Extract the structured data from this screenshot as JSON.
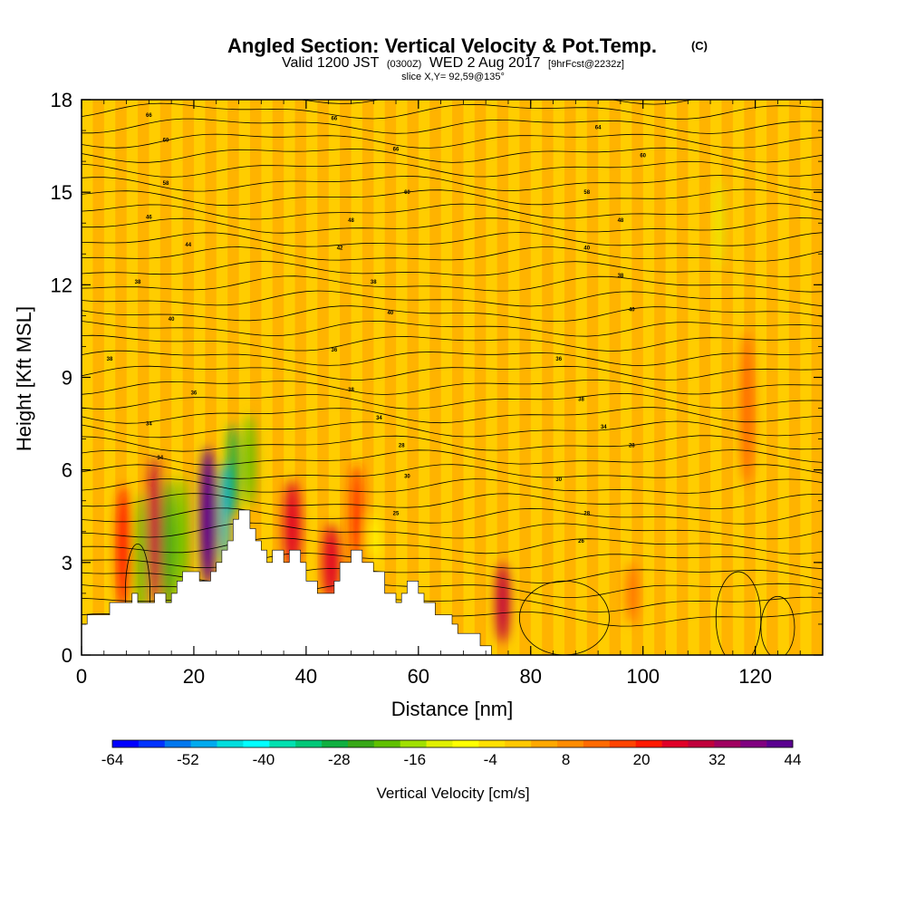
{
  "title": {
    "main": "Angled Section: Vertical Velocity & Pot.Temp.",
    "unit_tag": "(C)",
    "valid_prefix": "Valid 1200 JST",
    "valid_utc": "(0300Z)",
    "valid_date": "WED 2 Aug 2017",
    "forecast": "[9hrFcst@2232z]",
    "slice": "slice X,Y= 92,59@135°"
  },
  "chart_data": {
    "type": "heatmap",
    "xlabel": "Distance [nm]",
    "ylabel": "Height [Kft MSL]",
    "xlim": [
      0,
      132
    ],
    "ylim": [
      0,
      18
    ],
    "x_ticks": [
      "0",
      "20",
      "40",
      "60",
      "80",
      "100",
      "120"
    ],
    "y_ticks": [
      "0",
      "3",
      "6",
      "9",
      "12",
      "15",
      "18"
    ],
    "colorbar": {
      "title": "Vertical Velocity [cm/s]",
      "min": -64,
      "max": 44,
      "tick_labels": [
        "-64",
        "-52",
        "-40",
        "-28",
        "-16",
        "-4",
        "8",
        "20",
        "32",
        "44"
      ],
      "colors": [
        "#0000ff",
        "#0033ff",
        "#0077ee",
        "#00aaee",
        "#00dddd",
        "#00ffff",
        "#00e0b0",
        "#00c878",
        "#10b040",
        "#38a818",
        "#60c000",
        "#a0e000",
        "#e0f000",
        "#ffff00",
        "#ffe000",
        "#ffc800",
        "#ffa800",
        "#ff8c00",
        "#ff6a00",
        "#ff4400",
        "#ff1a00",
        "#e00028",
        "#c0003c",
        "#a00060",
        "#800080",
        "#5a0090"
      ]
    },
    "terrain": [
      [
        0,
        1.0
      ],
      [
        1,
        1.0
      ],
      [
        1,
        1.3
      ],
      [
        5,
        1.3
      ],
      [
        5,
        1.7
      ],
      [
        9,
        1.7
      ],
      [
        9,
        2.0
      ],
      [
        10,
        2.0
      ],
      [
        10,
        1.7
      ],
      [
        13,
        1.7
      ],
      [
        13,
        2.0
      ],
      [
        15,
        2.0
      ],
      [
        15,
        1.7
      ],
      [
        16,
        1.7
      ],
      [
        16,
        2.0
      ],
      [
        17,
        2.0
      ],
      [
        17,
        2.4
      ],
      [
        18,
        2.4
      ],
      [
        18,
        2.7
      ],
      [
        21,
        2.7
      ],
      [
        21,
        2.4
      ],
      [
        23,
        2.4
      ],
      [
        23,
        2.7
      ],
      [
        24,
        2.7
      ],
      [
        24,
        3.0
      ],
      [
        25,
        3.0
      ],
      [
        25,
        3.4
      ],
      [
        26,
        3.4
      ],
      [
        26,
        3.7
      ],
      [
        27,
        3.7
      ],
      [
        27,
        4.4
      ],
      [
        28,
        4.4
      ],
      [
        28,
        4.7
      ],
      [
        30,
        4.7
      ],
      [
        30,
        4.1
      ],
      [
        31,
        4.1
      ],
      [
        31,
        3.7
      ],
      [
        32,
        3.7
      ],
      [
        32,
        3.4
      ],
      [
        33,
        3.4
      ],
      [
        33,
        3.0
      ],
      [
        34,
        3.0
      ],
      [
        34,
        3.4
      ],
      [
        36,
        3.4
      ],
      [
        36,
        3.0
      ],
      [
        37,
        3.0
      ],
      [
        37,
        3.4
      ],
      [
        39,
        3.4
      ],
      [
        39,
        3.0
      ],
      [
        40,
        3.0
      ],
      [
        40,
        2.4
      ],
      [
        42,
        2.4
      ],
      [
        42,
        2.0
      ],
      [
        45,
        2.0
      ],
      [
        45,
        2.4
      ],
      [
        46,
        2.4
      ],
      [
        46,
        3.0
      ],
      [
        48,
        3.0
      ],
      [
        48,
        3.4
      ],
      [
        50,
        3.4
      ],
      [
        50,
        3.0
      ],
      [
        52,
        3.0
      ],
      [
        52,
        2.7
      ],
      [
        54,
        2.7
      ],
      [
        54,
        2.0
      ],
      [
        56,
        2.0
      ],
      [
        56,
        1.7
      ],
      [
        57,
        1.7
      ],
      [
        57,
        2.0
      ],
      [
        58,
        2.0
      ],
      [
        58,
        2.4
      ],
      [
        60,
        2.4
      ],
      [
        60,
        2.0
      ],
      [
        61,
        2.0
      ],
      [
        61,
        1.7
      ],
      [
        63,
        1.7
      ],
      [
        63,
        1.3
      ],
      [
        66,
        1.3
      ],
      [
        66,
        1.0
      ],
      [
        67,
        1.0
      ],
      [
        67,
        0.7
      ],
      [
        71,
        0.7
      ],
      [
        71,
        0.3
      ],
      [
        73,
        0.3
      ],
      [
        73,
        0.0
      ]
    ],
    "velocity_cells": [
      {
        "x": 7.5,
        "y": 3.5,
        "w": 2.5,
        "h": 4.0,
        "v": 22
      },
      {
        "x": 10.5,
        "y": 3.0,
        "w": 1.8,
        "h": 4.5,
        "v": -22
      },
      {
        "x": 13.0,
        "y": 4.0,
        "w": 2.5,
        "h": 5.0,
        "v": 28
      },
      {
        "x": 15.5,
        "y": 3.5,
        "w": 2.2,
        "h": 4.5,
        "v": -26
      },
      {
        "x": 18.0,
        "y": 3.8,
        "w": 2.0,
        "h": 4.0,
        "v": -20
      },
      {
        "x": 22.5,
        "y": 4.5,
        "w": 3.0,
        "h": 4.5,
        "v": 40
      },
      {
        "x": 25.5,
        "y": 4.5,
        "w": 1.5,
        "h": 3.5,
        "v": -50
      },
      {
        "x": 27.0,
        "y": 6.0,
        "w": 2.0,
        "h": 3.0,
        "v": -28
      },
      {
        "x": 30.0,
        "y": 6.3,
        "w": 2.0,
        "h": 3.0,
        "v": -20
      },
      {
        "x": 37.5,
        "y": 4.2,
        "w": 3.0,
        "h": 3.0,
        "v": 24
      },
      {
        "x": 44.5,
        "y": 3.0,
        "w": 3.0,
        "h": 2.5,
        "v": 26
      },
      {
        "x": 49.0,
        "y": 4.5,
        "w": 2.0,
        "h": 3.5,
        "v": 22
      },
      {
        "x": 52.0,
        "y": 3.8,
        "w": 1.5,
        "h": 1.5,
        "v": -10
      },
      {
        "x": 75.0,
        "y": 1.7,
        "w": 2.5,
        "h": 2.6,
        "v": 30
      },
      {
        "x": 98.0,
        "y": 2.0,
        "w": 2.0,
        "h": 2.0,
        "v": 14
      },
      {
        "x": 113.8,
        "y": 14.0,
        "w": 1.2,
        "h": 3.0,
        "v": -12
      },
      {
        "x": 118.5,
        "y": 8.0,
        "w": 2.5,
        "h": 5.0,
        "v": 12
      }
    ],
    "theta_contours": {
      "levels_count": 37,
      "labels": [
        {
          "x": 12,
          "y": 17.5,
          "text": "66"
        },
        {
          "x": 45,
          "y": 17.4,
          "text": "66"
        },
        {
          "x": 92,
          "y": 17.1,
          "text": "64"
        },
        {
          "x": 15,
          "y": 16.7,
          "text": "60"
        },
        {
          "x": 56,
          "y": 16.4,
          "text": "66"
        },
        {
          "x": 100,
          "y": 16.2,
          "text": "60"
        },
        {
          "x": 15,
          "y": 15.3,
          "text": "58"
        },
        {
          "x": 58,
          "y": 15.0,
          "text": "60"
        },
        {
          "x": 90,
          "y": 15.0,
          "text": "58"
        },
        {
          "x": 12,
          "y": 14.2,
          "text": "46"
        },
        {
          "x": 48,
          "y": 14.1,
          "text": "48"
        },
        {
          "x": 96,
          "y": 14.1,
          "text": "48"
        },
        {
          "x": 19,
          "y": 13.3,
          "text": "44"
        },
        {
          "x": 46,
          "y": 13.2,
          "text": "42"
        },
        {
          "x": 90,
          "y": 13.2,
          "text": "40"
        },
        {
          "x": 10,
          "y": 12.1,
          "text": "38"
        },
        {
          "x": 52,
          "y": 12.1,
          "text": "38"
        },
        {
          "x": 96,
          "y": 12.3,
          "text": "38"
        },
        {
          "x": 16,
          "y": 10.9,
          "text": "40"
        },
        {
          "x": 55,
          "y": 11.1,
          "text": "40"
        },
        {
          "x": 98,
          "y": 11.2,
          "text": "40"
        },
        {
          "x": 5,
          "y": 9.6,
          "text": "38"
        },
        {
          "x": 45,
          "y": 9.9,
          "text": "36"
        },
        {
          "x": 85,
          "y": 9.6,
          "text": "36"
        },
        {
          "x": 20,
          "y": 8.5,
          "text": "36"
        },
        {
          "x": 48,
          "y": 8.6,
          "text": "38"
        },
        {
          "x": 89,
          "y": 8.3,
          "text": "38"
        },
        {
          "x": 12,
          "y": 7.5,
          "text": "34"
        },
        {
          "x": 53,
          "y": 7.7,
          "text": "34"
        },
        {
          "x": 93,
          "y": 7.4,
          "text": "34"
        },
        {
          "x": 14,
          "y": 6.4,
          "text": "34"
        },
        {
          "x": 57,
          "y": 6.8,
          "text": "28"
        },
        {
          "x": 98,
          "y": 6.8,
          "text": "28"
        },
        {
          "x": 58,
          "y": 5.8,
          "text": "30"
        },
        {
          "x": 85,
          "y": 5.7,
          "text": "30"
        },
        {
          "x": 56,
          "y": 4.6,
          "text": "25"
        },
        {
          "x": 90,
          "y": 4.6,
          "text": "28"
        },
        {
          "x": 89,
          "y": 3.7,
          "text": "26"
        }
      ]
    }
  }
}
